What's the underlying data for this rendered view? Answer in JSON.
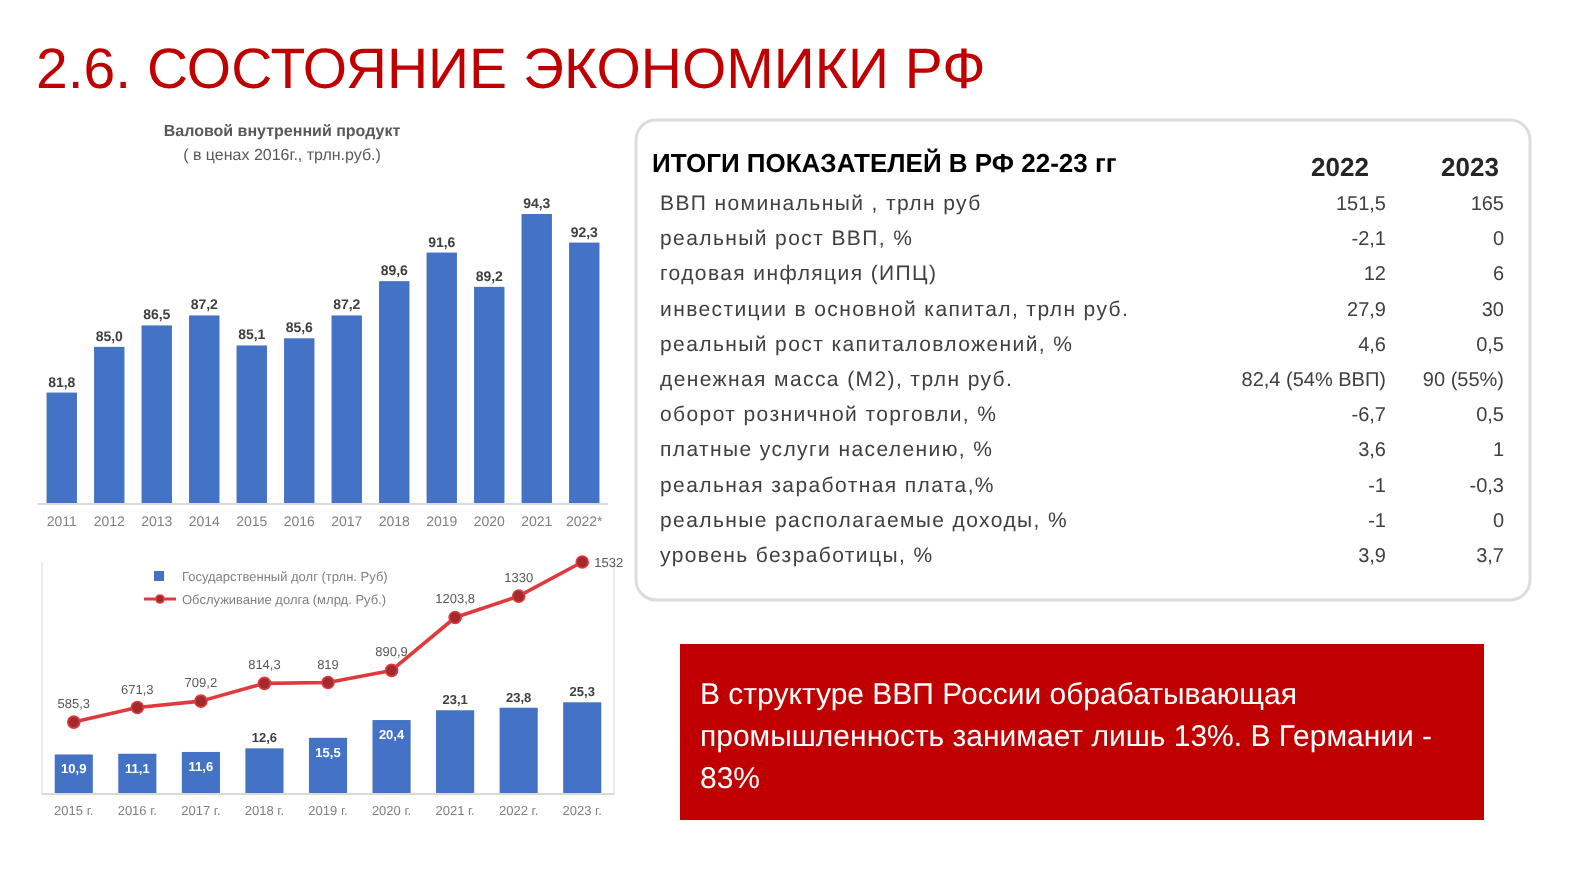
{
  "chart_data": [
    {
      "type": "other",
      "title": "2.6. СОСТОЯНИЕ ЭКОНОМИКИ РФ"
    },
    {
      "type": "bar",
      "title": "Валовой внутренний продукт",
      "subtitle": "( в ценах 2016г., трлн.руб.)",
      "categories": [
        "2011",
        "2012",
        "2013",
        "2014",
        "2015",
        "2016",
        "2017",
        "2018",
        "2019",
        "2020",
        "2021",
        "2022*"
      ],
      "values": [
        81.8,
        85.0,
        86.5,
        87.2,
        85.1,
        85.6,
        87.2,
        89.6,
        91.6,
        89.2,
        94.3,
        92.3
      ],
      "value_labels": [
        "81,8",
        "85,0",
        "86,5",
        "87,2",
        "85,1",
        "85,6",
        "87,2",
        "89,6",
        "91,6",
        "89,2",
        "94,3",
        "92,3"
      ],
      "color": "#4472c4",
      "ylim": [
        74,
        94.3
      ],
      "tick_labels": "x"
    },
    {
      "type": "other",
      "title": "ИТОГИ ПОКАЗАТЕЛЕЙ В РФ 22-23 гг",
      "annotations": [
        "2022",
        "2023",
        "ВВП номинальный , трлн руб",
        "151,5",
        "165",
        "реальный рост ВВП, %",
        "-2,1",
        "0",
        "годовая инфляция (ИПЦ)",
        "12",
        "6",
        "инвестиции в основной капитал, трлн руб.",
        "27,9",
        "30",
        "реальный рост капиталовложений, %",
        "4,6",
        "0,5",
        "денежная масса (М2), трлн руб.",
        "82,4 (54% ВВП)",
        "90 (55%)",
        "оборот розничной торговли, %",
        "-6,7",
        "0,5",
        "платные услуги населению, %",
        "3,6",
        "1",
        "реальная заработная плата,%",
        "-1",
        "-0,3",
        "реальные располагаемые доходы, %",
        "-1",
        "0",
        "уровень безработицы, %",
        "3,9",
        "3,7"
      ]
    },
    {
      "type": "bar",
      "categories": [
        "2015 г.",
        "2016 г.",
        "2017 г.",
        "2018 г.",
        "2019 г.",
        "2020 г.",
        "2021 г.",
        "2022 г.",
        "2023 г."
      ],
      "series": [
        {
          "name": "Государственный долг (трлн. Руб)",
          "color": "#4472c4",
          "values": [
            10.9,
            11.1,
            11.6,
            12.6,
            15.5,
            20.4,
            23.1,
            23.8,
            25.3
          ],
          "value_labels": [
            "10,9",
            "11,1",
            "11,6",
            "12,6",
            "15,5",
            "20,4",
            "23,1",
            "23,8",
            "25,3"
          ]
        },
        {
          "name": "Обслуживание долга (млрд. Руб.)",
          "type": "line",
          "axis": "y2",
          "color": "#e03a3e",
          "values": [
            585.3,
            671.3,
            709.2,
            814.3,
            819,
            890.9,
            1203.8,
            1330,
            1532
          ],
          "value_labels": [
            "585,3",
            "671,3",
            "709,2",
            "814,3",
            "819",
            "890,9",
            "1203,8",
            "1330",
            "1532"
          ]
        }
      ],
      "ylim": [
        0,
        64
      ],
      "y2lim": [
        160,
        1532
      ],
      "tick_labels": "x",
      "legend": "top left",
      "marker": "circle",
      "line_style": "solid"
    },
    {
      "type": "other",
      "annotations": [
        "В структуре ВВП России обрабатывающая промышленность занимает лишь 13%. В Германии - 83%"
      ]
    }
  ]
}
